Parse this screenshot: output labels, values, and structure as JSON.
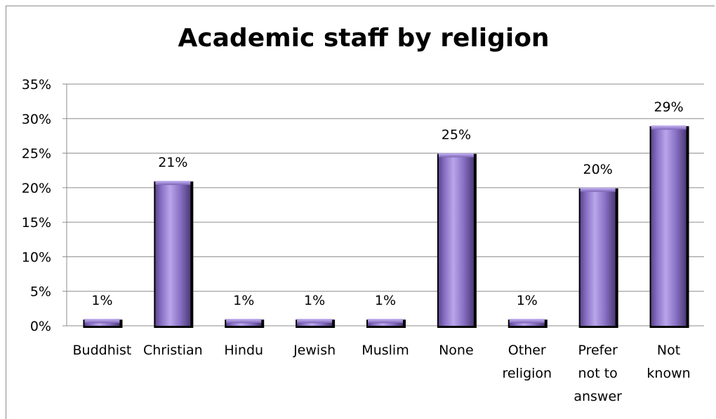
{
  "chart_data": {
    "type": "bar",
    "title": "Academic staff by religion",
    "categories": [
      [
        "Buddhist"
      ],
      [
        "Christian"
      ],
      [
        "Hindu"
      ],
      [
        "Jewish"
      ],
      [
        "Muslim"
      ],
      [
        "None"
      ],
      [
        "Other",
        "religion"
      ],
      [
        "Prefer",
        "not to",
        "answer"
      ],
      [
        "Not",
        "known"
      ]
    ],
    "values": [
      1,
      21,
      1,
      1,
      1,
      25,
      1,
      20,
      29
    ],
    "data_labels": [
      "1%",
      "21%",
      "1%",
      "1%",
      "1%",
      "25%",
      "1%",
      "20%",
      "29%"
    ],
    "ylim": [
      0,
      35
    ],
    "yticks": [
      0,
      5,
      10,
      15,
      20,
      25,
      30,
      35
    ],
    "ytick_labels": [
      "0%",
      "5%",
      "10%",
      "15%",
      "20%",
      "25%",
      "30%",
      "35%"
    ],
    "grid": true,
    "legend": false,
    "colors": {
      "bar_fill": "#8066b8",
      "bar_light": "#b8a4e8",
      "bar_shadow": "#000000",
      "grid": "#8c8c8c"
    }
  }
}
